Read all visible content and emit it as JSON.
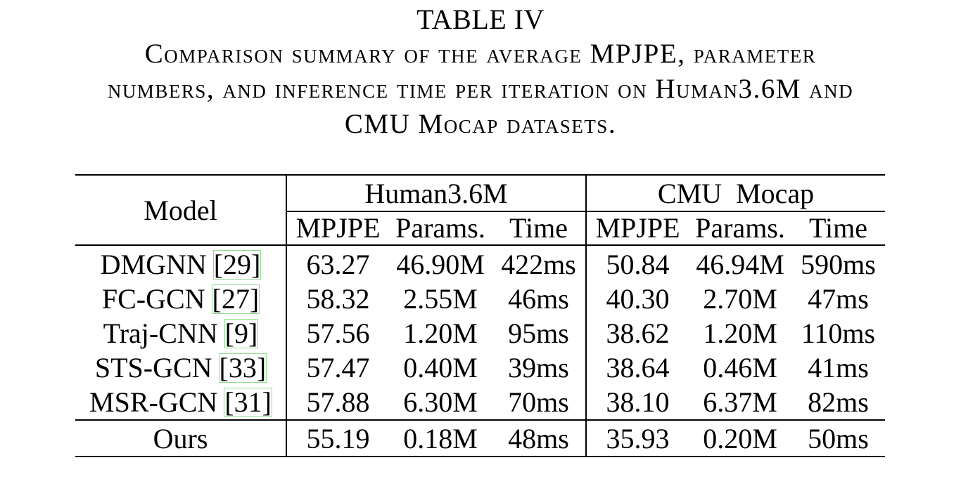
{
  "caption": {
    "label": "TABLE IV",
    "lines": [
      "Comparison summary of the average MPJPE, parameter",
      "numbers, and inference time per iteration on Human3.6M and",
      "CMU Mocap datasets."
    ]
  },
  "table": {
    "model_header": "Model",
    "groups": [
      "Human3.6M",
      "CMU  Mocap"
    ],
    "subheaders": [
      "MPJPE",
      "Params.",
      "Time",
      "MPJPE",
      "Params.",
      "Time"
    ],
    "rows": [
      {
        "model": "DMGNN",
        "cite": "[29]",
        "values": [
          "63.27",
          "46.90M",
          "422ms",
          "50.84",
          "46.94M",
          "590ms"
        ],
        "bold": [
          false,
          false,
          false,
          false,
          false,
          false
        ]
      },
      {
        "model": "FC-GCN",
        "cite": "[27]",
        "values": [
          "58.32",
          "2.55M",
          "46ms",
          "40.30",
          "2.70M",
          "47ms"
        ],
        "bold": [
          false,
          false,
          false,
          false,
          false,
          false
        ]
      },
      {
        "model": "Traj-CNN",
        "cite": "[9]",
        "values": [
          "57.56",
          "1.20M",
          "95ms",
          "38.62",
          "1.20M",
          "110ms"
        ],
        "bold": [
          false,
          false,
          false,
          false,
          false,
          false
        ]
      },
      {
        "model": "STS-GCN",
        "cite": "[33]",
        "values": [
          "57.47",
          "0.40M",
          "39ms",
          "38.64",
          "0.46M",
          "41ms"
        ],
        "bold": [
          false,
          false,
          true,
          false,
          false,
          true
        ]
      },
      {
        "model": "MSR-GCN",
        "cite": "[31]",
        "values": [
          "57.88",
          "6.30M",
          "70ms",
          "38.10",
          "6.37M",
          "82ms"
        ],
        "bold": [
          false,
          false,
          false,
          false,
          false,
          false
        ]
      },
      {
        "model": "Ours",
        "cite": "",
        "values": [
          "55.19",
          "0.18M",
          "48ms",
          "35.93",
          "0.20M",
          "50ms"
        ],
        "bold": [
          true,
          true,
          false,
          true,
          true,
          false
        ]
      }
    ]
  }
}
